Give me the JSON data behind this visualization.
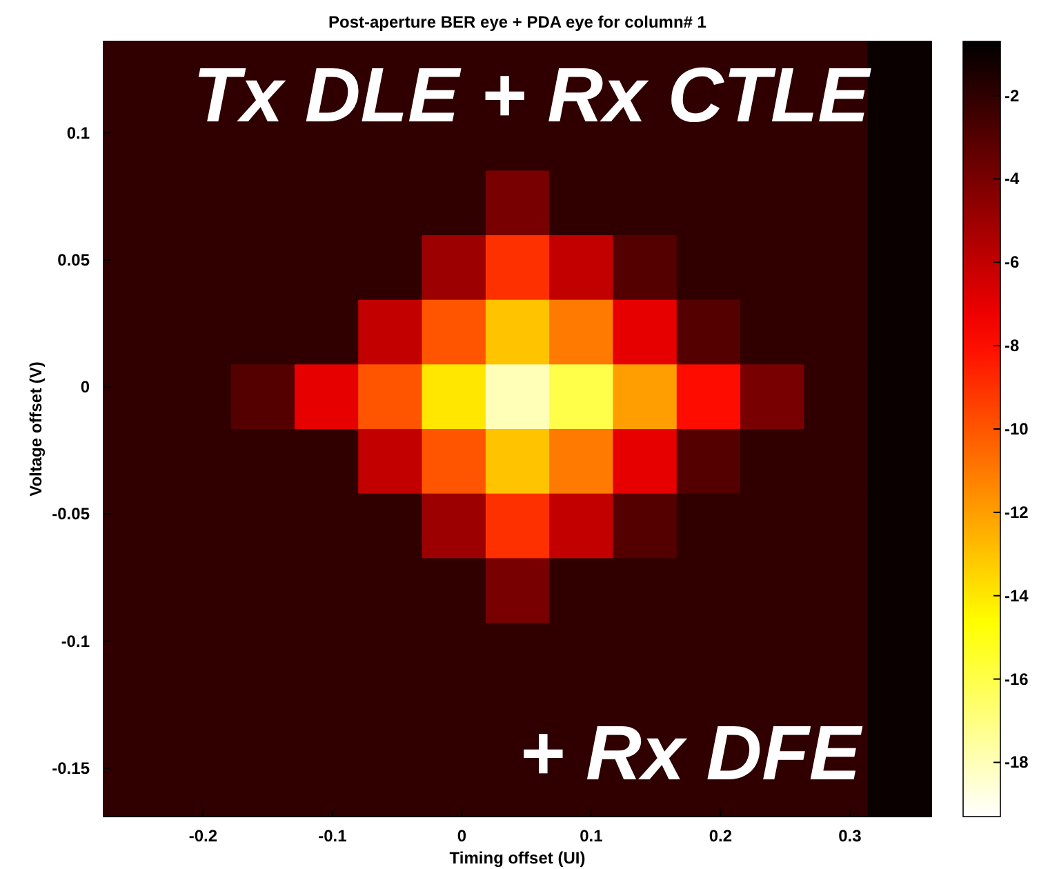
{
  "chart_data": {
    "type": "heatmap",
    "title": "Post-aperture BER eye + PDA eye for column# 1",
    "xlabel": "Timing offset (UI)",
    "ylabel": "Voltage offset (V)",
    "annotations": [
      "Tx DLE + Rx CTLE",
      "+ Rx DFE"
    ],
    "xlim": [
      -0.277,
      0.363
    ],
    "xticks": [
      -0.2,
      -0.1,
      0,
      0.1,
      0.2,
      0.3
    ],
    "ylim": [
      -0.169,
      0.136
    ],
    "yticks": [
      -0.15,
      -0.1,
      -0.05,
      0,
      0.05,
      0.1
    ],
    "clim": [
      -19.3,
      -0.7
    ],
    "cticks": [
      -18,
      -16,
      -14,
      -12,
      -10,
      -8,
      -6,
      -4,
      -2
    ],
    "cells": [
      [
        -2,
        -2,
        -2,
        -2,
        -2,
        -2,
        -2,
        -2,
        -2,
        -2,
        -2,
        -2,
        -1
      ],
      [
        -2,
        -2,
        -2,
        -2,
        -2,
        -2,
        -2,
        -2,
        -2,
        -2,
        -2,
        -2,
        -1
      ],
      [
        -2,
        -2,
        -2,
        -2,
        -2,
        -2,
        -4,
        -2,
        -2,
        -2,
        -2,
        -2,
        -1
      ],
      [
        -2,
        -2,
        -2,
        -2,
        -2,
        -5,
        -9,
        -6,
        -3,
        -2,
        -2,
        -2,
        -1
      ],
      [
        -2,
        -2,
        -2,
        -2,
        -6,
        -10,
        -13,
        -11,
        -7,
        -3,
        -2,
        -2,
        -1
      ],
      [
        -2,
        -2,
        -3,
        -7,
        -10,
        -14,
        -18,
        -16,
        -12,
        -8,
        -4,
        -2,
        -1
      ],
      [
        -2,
        -2,
        -2,
        -2,
        -6,
        -10,
        -13,
        -11,
        -7,
        -3,
        -2,
        -2,
        -1
      ],
      [
        -2,
        -2,
        -2,
        -2,
        -2,
        -5,
        -9,
        -6,
        -3,
        -2,
        -2,
        -2,
        -1
      ],
      [
        -2,
        -2,
        -2,
        -2,
        -2,
        -2,
        -4,
        -2,
        -2,
        -2,
        -2,
        -2,
        -1
      ],
      [
        -2,
        -2,
        -2,
        -2,
        -2,
        -2,
        -2,
        -2,
        -2,
        -2,
        -2,
        -2,
        -1
      ],
      [
        -2,
        -2,
        -2,
        -2,
        -2,
        -2,
        -2,
        -2,
        -2,
        -2,
        -2,
        -2,
        -1
      ],
      [
        -2,
        -2,
        -2,
        -2,
        -2,
        -2,
        -2,
        -2,
        -2,
        -2,
        -2,
        -2,
        -1
      ]
    ]
  }
}
